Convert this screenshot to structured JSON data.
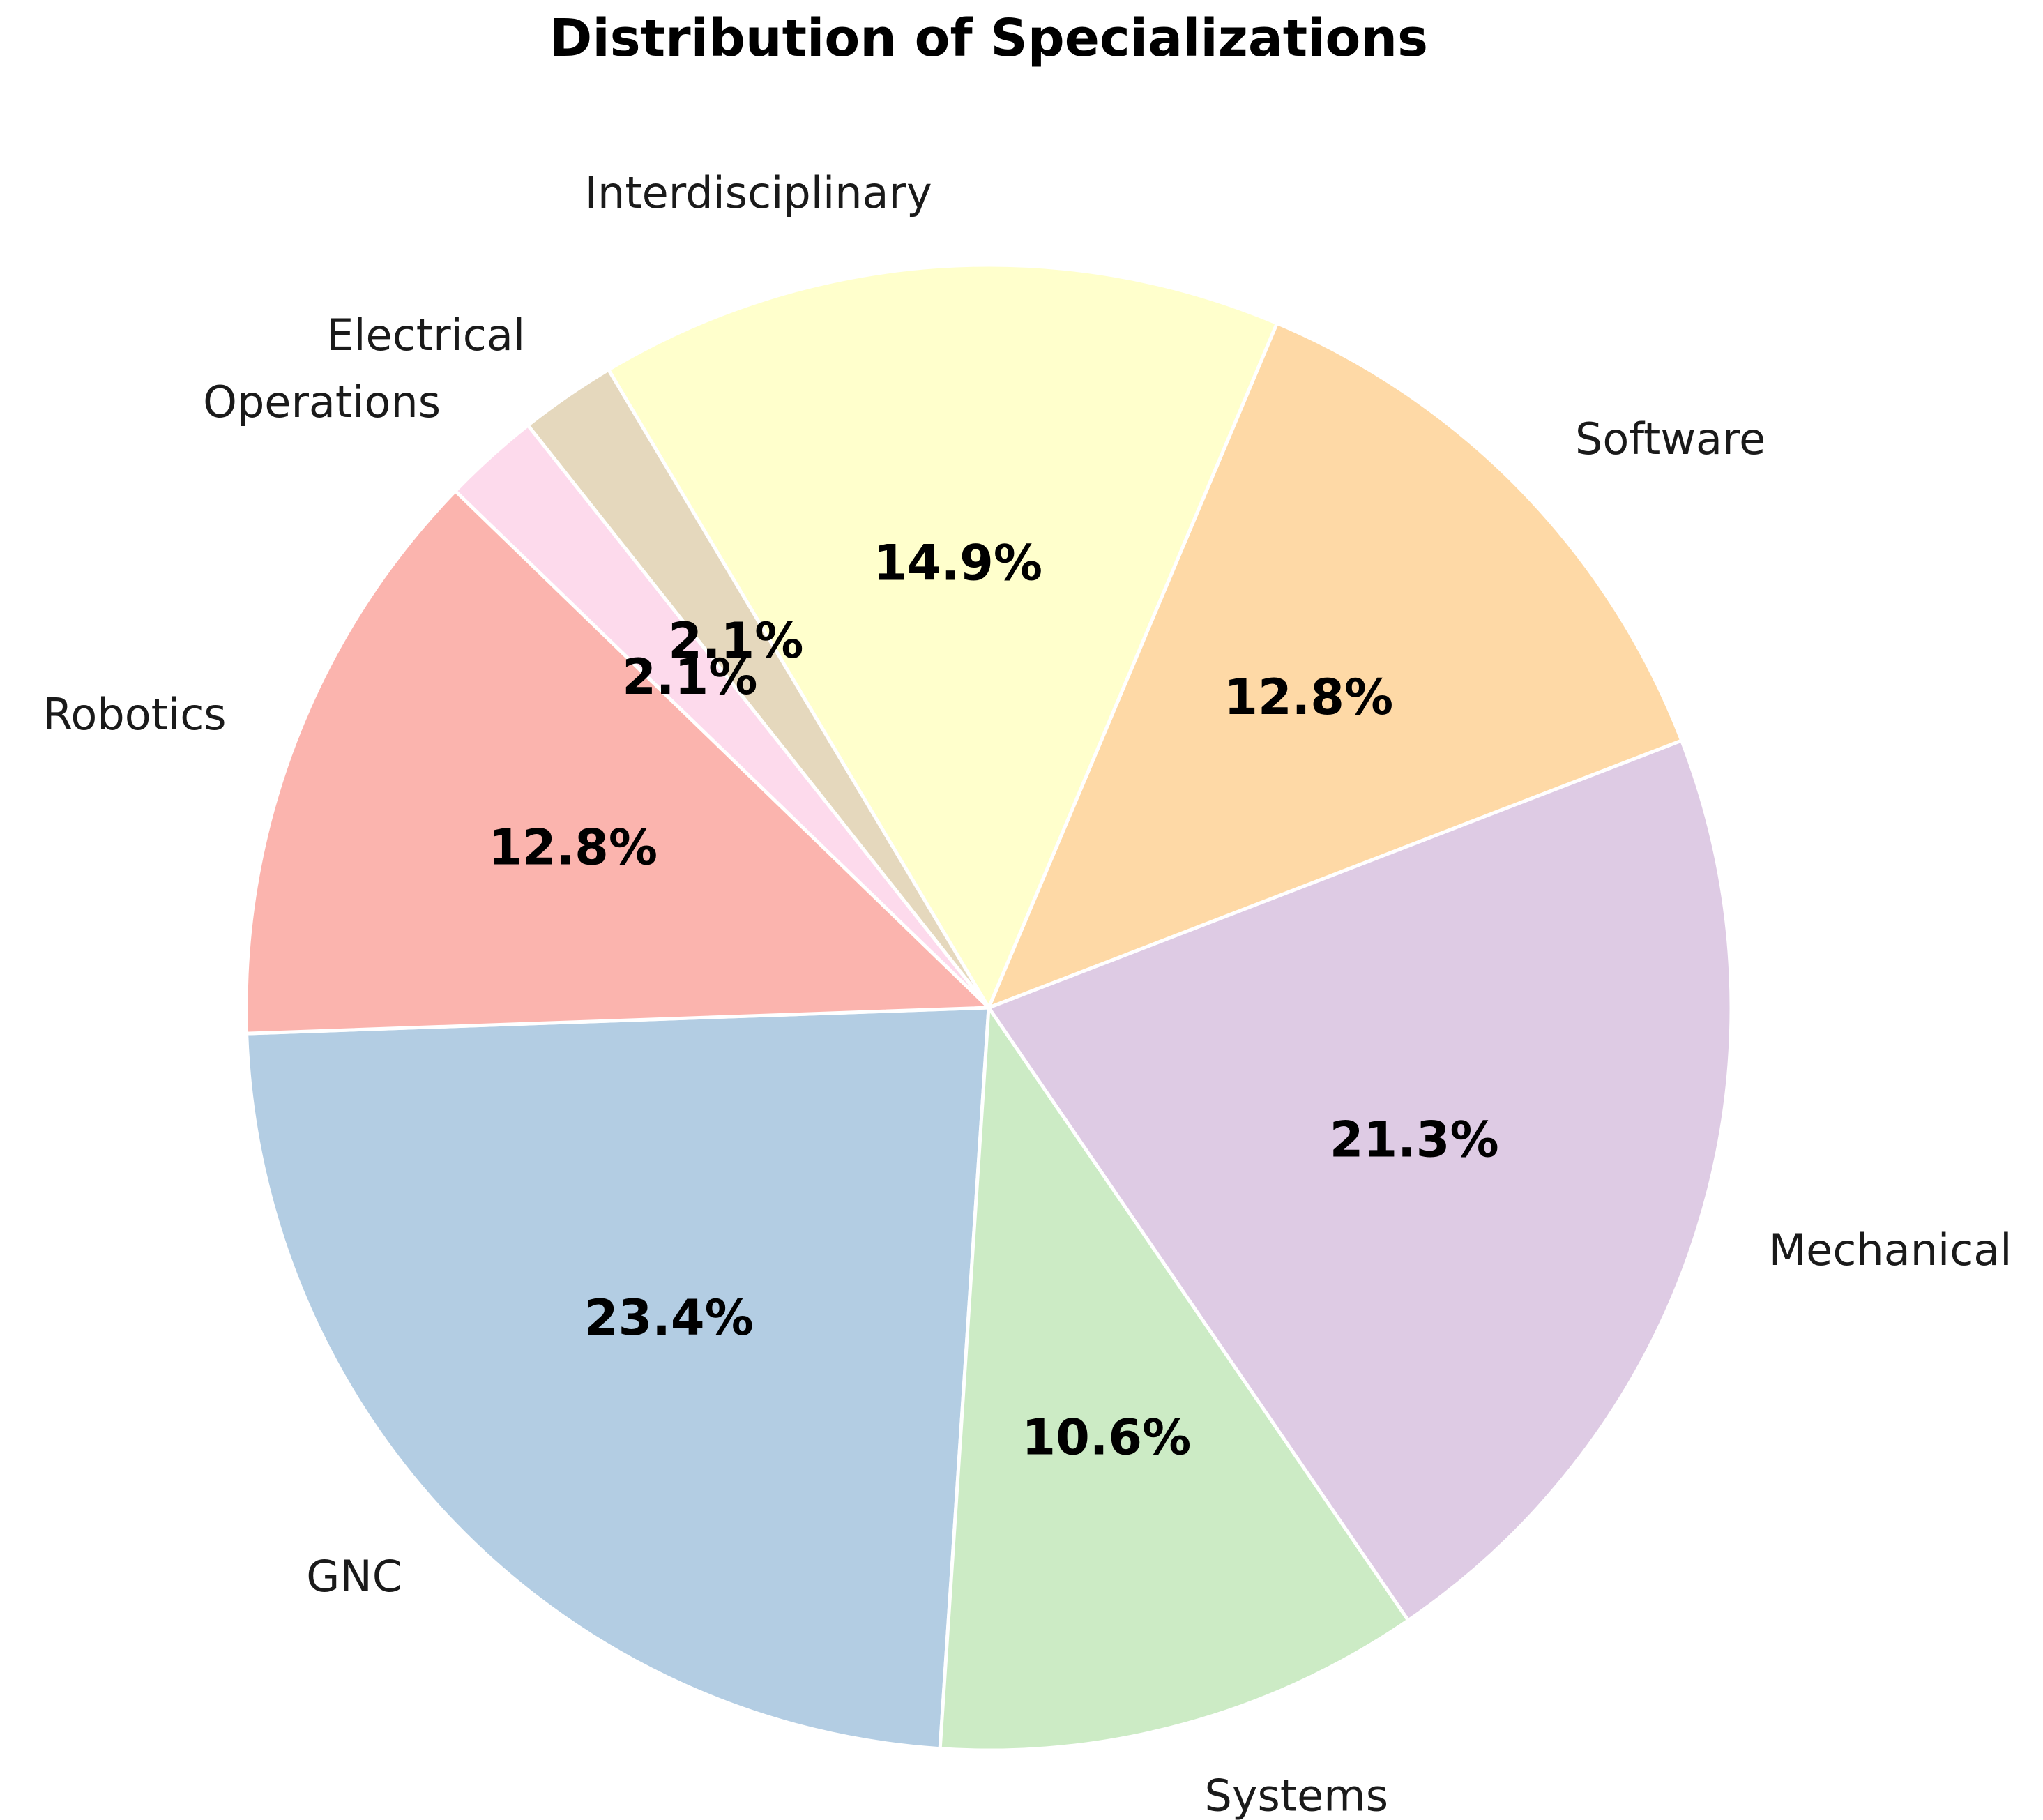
{
  "chart_data": {
    "type": "pie",
    "title": "Distribution of Specializations",
    "slices": [
      {
        "label": "GNC",
        "value": 23.4,
        "pct_label": "23.4%",
        "color": "#b3cde3"
      },
      {
        "label": "Systems",
        "value": 10.6,
        "pct_label": "10.6%",
        "color": "#ccebc5"
      },
      {
        "label": "Mechanical",
        "value": 21.3,
        "pct_label": "21.3%",
        "color": "#decbe4"
      },
      {
        "label": "Software",
        "value": 12.8,
        "pct_label": "12.8%",
        "color": "#fed9a6"
      },
      {
        "label": "Interdisciplinary",
        "value": 14.9,
        "pct_label": "14.9%",
        "color": "#ffffcc"
      },
      {
        "label": "Electrical",
        "value": 2.1,
        "pct_label": "2.1%",
        "color": "#e5d8bd"
      },
      {
        "label": "Operations",
        "value": 2.1,
        "pct_label": "2.1%",
        "color": "#fddaec"
      },
      {
        "label": "Robotics",
        "value": 12.8,
        "pct_label": "12.8%",
        "color": "#fbb4ae"
      }
    ],
    "start_angle_deg": 182,
    "direction": "counterclockwise",
    "legend": "none"
  }
}
